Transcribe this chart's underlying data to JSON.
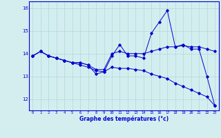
{
  "xlabel": "Graphe des températures (°c)",
  "background_color": "#d4eef0",
  "line_color": "#0000cc",
  "hours": [
    0,
    1,
    2,
    3,
    4,
    5,
    6,
    7,
    8,
    9,
    10,
    11,
    12,
    13,
    14,
    15,
    16,
    17,
    18,
    19,
    20,
    21,
    22,
    23
  ],
  "line1": [
    13.9,
    14.1,
    13.9,
    13.8,
    13.7,
    13.6,
    13.6,
    13.5,
    13.1,
    13.2,
    13.9,
    14.4,
    13.9,
    13.9,
    13.8,
    14.9,
    15.4,
    15.9,
    14.3,
    14.4,
    14.2,
    14.2,
    13.0,
    11.7
  ],
  "line2": [
    13.9,
    14.1,
    13.9,
    13.8,
    13.7,
    13.6,
    13.6,
    13.5,
    13.3,
    13.3,
    14.0,
    14.1,
    14.0,
    14.0,
    14.0,
    14.1,
    14.2,
    14.3,
    14.3,
    14.35,
    14.3,
    14.3,
    14.2,
    14.1
  ],
  "line3": [
    13.9,
    14.1,
    13.9,
    13.8,
    13.7,
    13.6,
    13.5,
    13.4,
    13.25,
    13.2,
    13.4,
    13.35,
    13.35,
    13.3,
    13.25,
    13.1,
    13.0,
    12.9,
    12.7,
    12.55,
    12.4,
    12.25,
    12.1,
    11.7
  ],
  "ylim": [
    11.5,
    16.3
  ],
  "yticks": [
    12,
    13,
    14,
    15,
    16
  ],
  "xlim": [
    -0.5,
    23.5
  ],
  "grid_color": "#b0d8d8"
}
